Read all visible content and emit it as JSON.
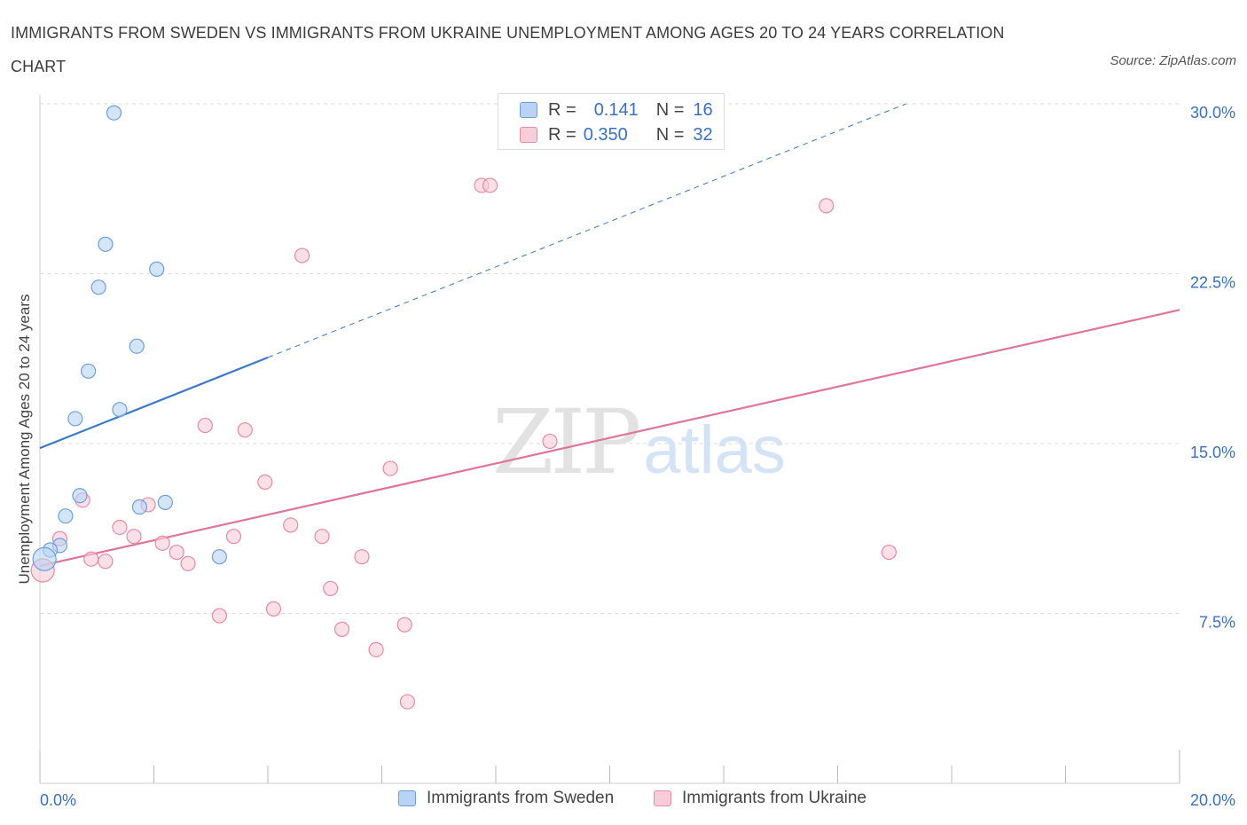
{
  "header": {
    "title": "IMMIGRANTS FROM SWEDEN VS IMMIGRANTS FROM UKRAINE UNEMPLOYMENT AMONG AGES 20 TO 24 YEARS CORRELATION CHART",
    "source": "Source: ZipAtlas.com"
  },
  "watermark": {
    "zip": "ZIP",
    "atlas": "atlas"
  },
  "legend": {
    "sweden": {
      "r_label": "R =",
      "r_value": "0.141",
      "n_label": "N =",
      "n_value": "16",
      "name": "Immigrants from Sweden"
    },
    "ukraine": {
      "r_label": "R =",
      "r_value": "0.350",
      "n_label": "N =",
      "n_value": "32",
      "name": "Immigrants from Ukraine"
    }
  },
  "colors": {
    "sweden_fill": "#b8d3f4",
    "sweden_stroke": "#6e9fdc",
    "sweden_line": "#3a78c9",
    "ukraine_fill": "#f9ccd9",
    "ukraine_stroke": "#e68aa6",
    "ukraine_line": "#e0749a",
    "tick_text": "#3a6fc4",
    "grid": "#dddddd"
  },
  "chart_data": {
    "type": "scatter",
    "title": "IMMIGRANTS FROM SWEDEN VS IMMIGRANTS FROM UKRAINE UNEMPLOYMENT AMONG AGES 20 TO 24 YEARS CORRELATION CHART",
    "xlabel": "",
    "ylabel": "Unemployment Among Ages 20 to 24 years",
    "xlim": [
      0,
      20
    ],
    "ylim": [
      0,
      30
    ],
    "x_tick_labels": [
      "0.0%",
      "20.0%"
    ],
    "y_ticks": [
      7.5,
      15,
      22.5,
      30
    ],
    "y_tick_labels": [
      "7.5%",
      "15.0%",
      "22.5%",
      "30.0%"
    ],
    "grid": true,
    "series": [
      {
        "name": "Immigrants from Sweden",
        "points": [
          {
            "x": 1.3,
            "y": 29.6
          },
          {
            "x": 1.15,
            "y": 23.8
          },
          {
            "x": 2.05,
            "y": 22.7
          },
          {
            "x": 1.03,
            "y": 21.9
          },
          {
            "x": 1.7,
            "y": 19.3
          },
          {
            "x": 0.85,
            "y": 18.2
          },
          {
            "x": 0.62,
            "y": 16.1
          },
          {
            "x": 1.4,
            "y": 16.5
          },
          {
            "x": 0.7,
            "y": 12.7
          },
          {
            "x": 1.75,
            "y": 12.2
          },
          {
            "x": 2.2,
            "y": 12.4
          },
          {
            "x": 0.45,
            "y": 11.8
          },
          {
            "x": 0.35,
            "y": 10.5
          },
          {
            "x": 0.18,
            "y": 10.3
          },
          {
            "x": 0.08,
            "y": 9.9
          },
          {
            "x": 3.15,
            "y": 10.0
          }
        ],
        "trend": {
          "x0": 0,
          "y0": 14.8,
          "x1": 4.0,
          "y1": 18.8,
          "dashed_to": {
            "x": 15.2,
            "y": 30.0
          }
        }
      },
      {
        "name": "Immigrants from Ukraine",
        "points": [
          {
            "x": 7.75,
            "y": 26.4
          },
          {
            "x": 7.9,
            "y": 26.4
          },
          {
            "x": 13.8,
            "y": 25.5
          },
          {
            "x": 4.6,
            "y": 23.3
          },
          {
            "x": 2.9,
            "y": 15.8
          },
          {
            "x": 3.6,
            "y": 15.6
          },
          {
            "x": 8.95,
            "y": 15.1
          },
          {
            "x": 6.15,
            "y": 13.9
          },
          {
            "x": 3.95,
            "y": 13.3
          },
          {
            "x": 0.75,
            "y": 12.5
          },
          {
            "x": 1.9,
            "y": 12.3
          },
          {
            "x": 1.4,
            "y": 11.3
          },
          {
            "x": 4.4,
            "y": 11.4
          },
          {
            "x": 1.65,
            "y": 10.9
          },
          {
            "x": 3.4,
            "y": 10.9
          },
          {
            "x": 4.95,
            "y": 10.9
          },
          {
            "x": 0.35,
            "y": 10.8
          },
          {
            "x": 2.15,
            "y": 10.6
          },
          {
            "x": 2.4,
            "y": 10.2
          },
          {
            "x": 0.9,
            "y": 9.9
          },
          {
            "x": 1.15,
            "y": 9.8
          },
          {
            "x": 2.6,
            "y": 9.7
          },
          {
            "x": 5.65,
            "y": 10.0
          },
          {
            "x": 14.9,
            "y": 10.2
          },
          {
            "x": 0.05,
            "y": 9.4
          },
          {
            "x": 5.1,
            "y": 8.6
          },
          {
            "x": 4.1,
            "y": 7.7
          },
          {
            "x": 3.15,
            "y": 7.4
          },
          {
            "x": 6.4,
            "y": 7.0
          },
          {
            "x": 5.3,
            "y": 6.8
          },
          {
            "x": 5.9,
            "y": 5.9
          },
          {
            "x": 6.45,
            "y": 3.6
          }
        ],
        "trend": {
          "x0": 0,
          "y0": 9.6,
          "x1": 20,
          "y1": 20.9
        }
      }
    ]
  }
}
